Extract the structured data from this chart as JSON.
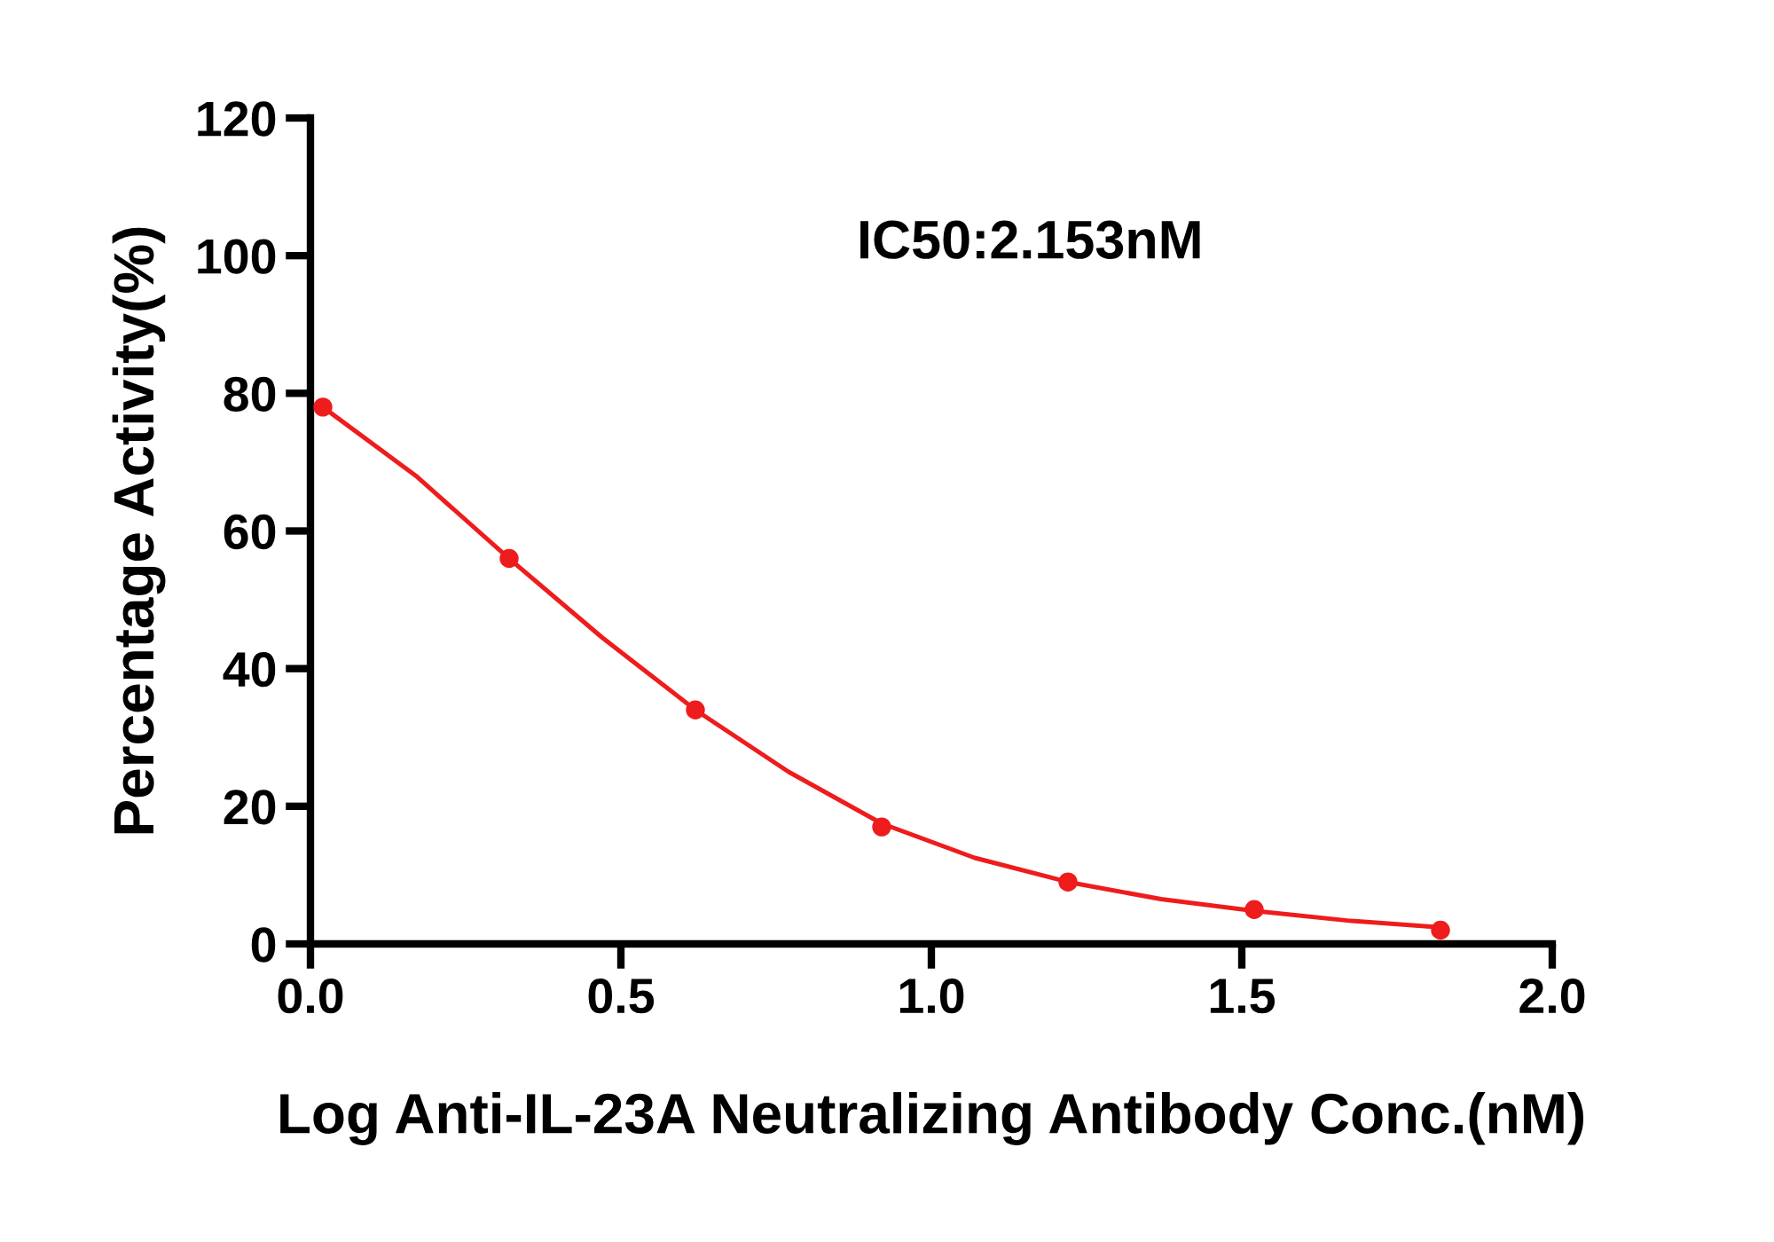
{
  "chart_data": {
    "type": "scatter",
    "xlabel": "Log Anti-IL-23A Neutralizing Antibody Conc.(nM)",
    "ylabel": "Percentage Activity(%)",
    "annotations": [
      "IC50:2.153nM"
    ],
    "series": [
      {
        "color": "#ee1c1c",
        "marker": "circle",
        "x": [
          0.02,
          0.32,
          0.62,
          0.92,
          1.22,
          1.52,
          1.82
        ],
        "values": [
          78,
          56,
          34,
          17,
          9,
          5,
          2
        ]
      },
      {
        "type": "line",
        "color": "#ee1c1c",
        "line_style": "solid",
        "x": [
          0.02,
          0.17,
          0.32,
          0.47,
          0.62,
          0.77,
          0.92,
          1.07,
          1.22,
          1.37,
          1.52,
          1.67,
          1.82
        ],
        "values": [
          78,
          68,
          56,
          44.5,
          34,
          25,
          17.5,
          12.5,
          9,
          6.5,
          4.8,
          3.4,
          2.4
        ]
      }
    ],
    "xlim": [
      0,
      2
    ],
    "xticks": [
      {
        "value": 0,
        "label": "0.0"
      },
      0.5,
      {
        "value": 1,
        "label": "1.0"
      },
      1.5,
      {
        "value": 2,
        "label": "2.0"
      }
    ],
    "ylim": [
      0,
      120
    ],
    "yticks": [
      0,
      20,
      40,
      60,
      80,
      100,
      120
    ],
    "grid": false,
    "legend": false
  }
}
